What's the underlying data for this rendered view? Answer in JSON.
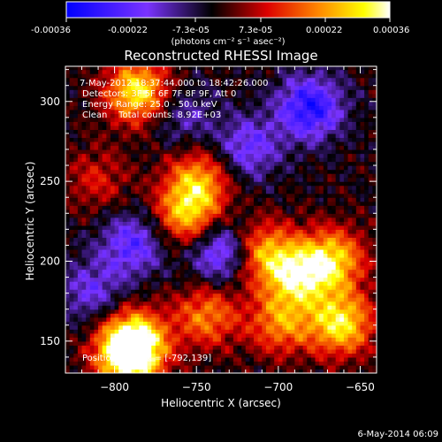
{
  "colorbar": {
    "ticks": [
      "-0.00036",
      "-0.00022",
      "-7.3e-05",
      "7.3e-05",
      "0.00022",
      "0.00036"
    ],
    "units": "(photons cm⁻² s⁻¹ asec⁻²)",
    "range": [
      -0.00036,
      0.00036
    ]
  },
  "chart_data": {
    "type": "heatmap",
    "title": "Reconstructed RHESSI Image",
    "xlabel": "Heliocentric X (arcsec)",
    "ylabel": "Heliocentric Y (arcsec)",
    "xlim": [
      -830,
      -640
    ],
    "ylim": [
      130,
      322
    ],
    "xticks": [
      -800,
      -750,
      -700,
      -650
    ],
    "xtick_labels": [
      "−800",
      "−750",
      "−700",
      "−650"
    ],
    "yticks": [
      150,
      200,
      250,
      300
    ],
    "colormap": "blue-purple-black-red-orange-yellow-white",
    "sources": [
      {
        "x": -792,
        "y": 139,
        "peak": 0.00036
      },
      {
        "x": -790,
        "y": 150,
        "peak": 0.0003
      },
      {
        "x": -787,
        "y": 305,
        "peak": 0.00034
      },
      {
        "x": -757,
        "y": 228,
        "peak": 0.00027
      },
      {
        "x": -750,
        "y": 250,
        "peak": 0.00024
      },
      {
        "x": -745,
        "y": 165,
        "peak": 0.00022
      },
      {
        "x": -712,
        "y": 205,
        "peak": 0.00026
      },
      {
        "x": -690,
        "y": 190,
        "peak": 0.0003
      },
      {
        "x": -700,
        "y": 160,
        "peak": 0.00022
      },
      {
        "x": -668,
        "y": 200,
        "peak": 0.00029
      },
      {
        "x": -663,
        "y": 160,
        "peak": 0.00033
      },
      {
        "x": -812,
        "y": 250,
        "peak": 0.00012
      },
      {
        "x": -760,
        "y": 290,
        "peak": -0.00012
      },
      {
        "x": -682,
        "y": 295,
        "peak": -0.00028
      },
      {
        "x": -720,
        "y": 270,
        "peak": -0.00018
      },
      {
        "x": -735,
        "y": 205,
        "peak": -0.00025
      },
      {
        "x": -790,
        "y": 210,
        "peak": -0.0002
      },
      {
        "x": -815,
        "y": 180,
        "peak": -0.00015
      }
    ],
    "annotations": [
      " 7-May-2012 18:37:44.000 to 18:42:26.000",
      "Detectors: 3F 5F 6F 7F 8F 9F, Att 0",
      "Energy Range: 25.0 - 50.0 keV",
      "Clean    Total counts: 8.92E+03"
    ],
    "peak_label": "Position of Peak = [-792,139]"
  },
  "footer": {
    "timestamp": "6-May-2014 06:09"
  }
}
